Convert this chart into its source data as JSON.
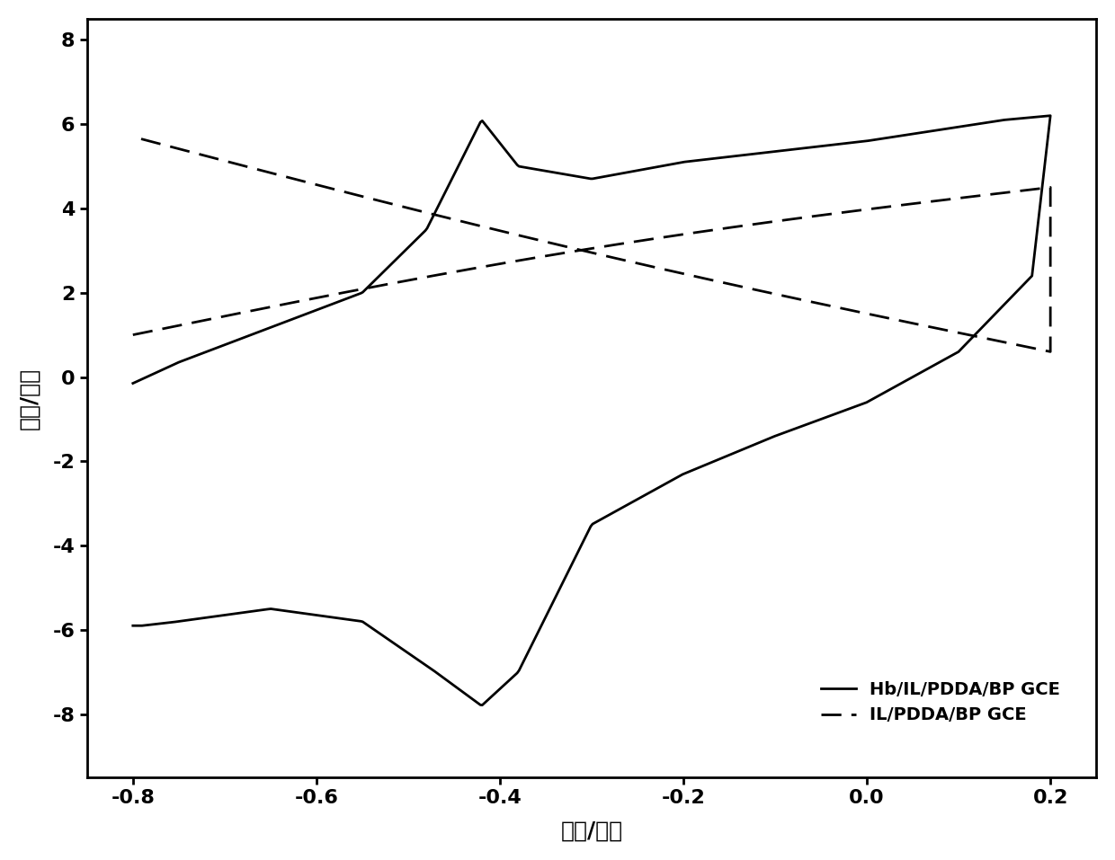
{
  "xlabel": "电压/伏特",
  "ylabel": "电流/微安",
  "xlim": [
    -0.85,
    0.25
  ],
  "ylim": [
    -9.5,
    8.5
  ],
  "xticks": [
    -0.8,
    -0.6,
    -0.4,
    -0.2,
    0.0,
    0.2
  ],
  "yticks": [
    -8,
    -6,
    -4,
    -2,
    0,
    2,
    4,
    6,
    8
  ],
  "line1_label": "Hb/IL/PDDA/BP GCE",
  "line2_label": "IL/PDDA/BP GCE",
  "background_color": "#ffffff",
  "line_color": "#000000",
  "legend_fontsize": 14,
  "axis_fontsize": 18,
  "tick_fontsize": 16
}
